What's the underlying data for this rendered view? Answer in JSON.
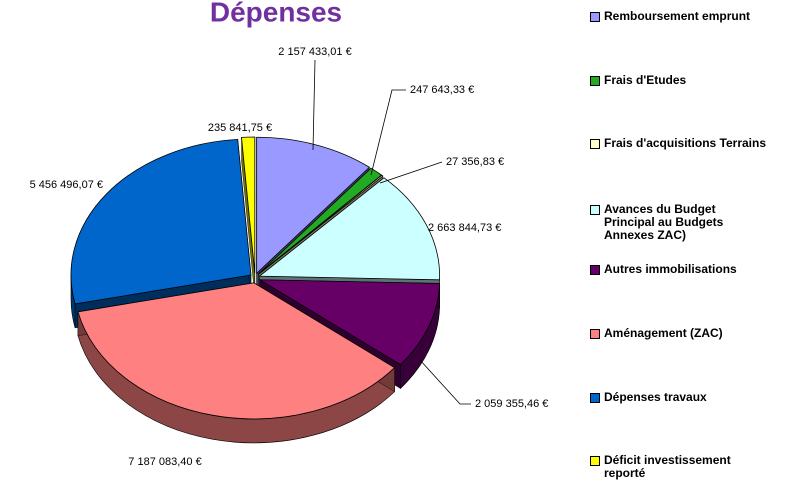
{
  "chart_data": {
    "type": "pie3d",
    "title": "Dépenses",
    "series": [
      {
        "name": "Remboursement emprunt",
        "color": "#9999ff",
        "values": [
          2157433.01
        ],
        "value_labels": [
          "2 157 433,01 €"
        ]
      },
      {
        "name": "Frais d'Etudes",
        "color": "#22aa22",
        "values": [
          247643.33
        ],
        "value_labels": [
          "247 643,33 €"
        ]
      },
      {
        "name": "Frais d'acquisitions Terrains",
        "color": "#ffffcc",
        "values": [
          27356.83
        ],
        "value_labels": [
          "27 356,83 €"
        ]
      },
      {
        "name": "Avances du Budget Principal au Budgets Annexes ZAC)",
        "color": "#ccffff",
        "values": [
          2663844.73
        ],
        "value_labels": [
          "2 663 844,73 €"
        ]
      },
      {
        "name": "Autres immobilisations",
        "color": "#660066",
        "values": [
          2059355.46
        ],
        "value_labels": [
          "2 059 355,46 €"
        ]
      },
      {
        "name": "Aménagement (ZAC)",
        "color": "#ff8080",
        "values": [
          7187083.4
        ],
        "value_labels": [
          "7 187 083,40 €"
        ]
      },
      {
        "name": "Dépenses travaux",
        "color": "#0066cc",
        "values": [
          5456496.07
        ],
        "value_labels": [
          "5 456 496,07 €"
        ]
      },
      {
        "name": "Déficit investissement reporté",
        "color": "#ffff00",
        "values": [
          235841.75
        ],
        "value_labels": [
          "235 841,75 €"
        ]
      }
    ]
  }
}
